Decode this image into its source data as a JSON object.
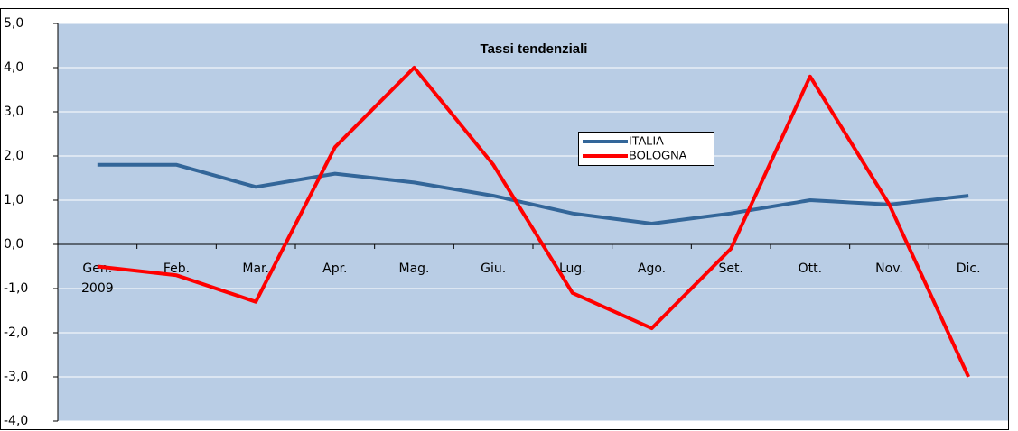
{
  "chart_data": {
    "type": "line",
    "title": "Tassi tendenziali",
    "categories": [
      "Gen.\n2009",
      "Feb.",
      "Mar.",
      "Apr.",
      "Mag.",
      "Giu.",
      "Lug.",
      "Ago.",
      "Set.",
      "Ott.",
      "Nov.",
      "Dic."
    ],
    "series": [
      {
        "name": "ITALIA",
        "color": "#336699",
        "values": [
          1.8,
          1.8,
          1.3,
          1.6,
          1.4,
          1.1,
          0.7,
          0.47,
          0.7,
          1.0,
          0.9,
          1.1
        ]
      },
      {
        "name": "BOLOGNA",
        "color": "#ff0000",
        "values": [
          -0.5,
          -0.7,
          -1.3,
          2.2,
          4.0,
          1.8,
          -1.1,
          -1.9,
          -0.1,
          3.8,
          0.9,
          -3.0
        ]
      }
    ],
    "ylim": [
      -4,
      5
    ],
    "yticks": [
      {
        "value": -4,
        "label": "-4,0"
      },
      {
        "value": -3,
        "label": "-3,0"
      },
      {
        "value": -2,
        "label": "-2,0"
      },
      {
        "value": -1,
        "label": "-1,0"
      },
      {
        "value": 0,
        "label": "0,0"
      },
      {
        "value": 1,
        "label": "1,0"
      },
      {
        "value": 2,
        "label": "2,0"
      },
      {
        "value": 3,
        "label": "3,0"
      },
      {
        "value": 4,
        "label": "4,0"
      },
      {
        "value": 5,
        "label": "5,0"
      }
    ],
    "grid": true
  }
}
